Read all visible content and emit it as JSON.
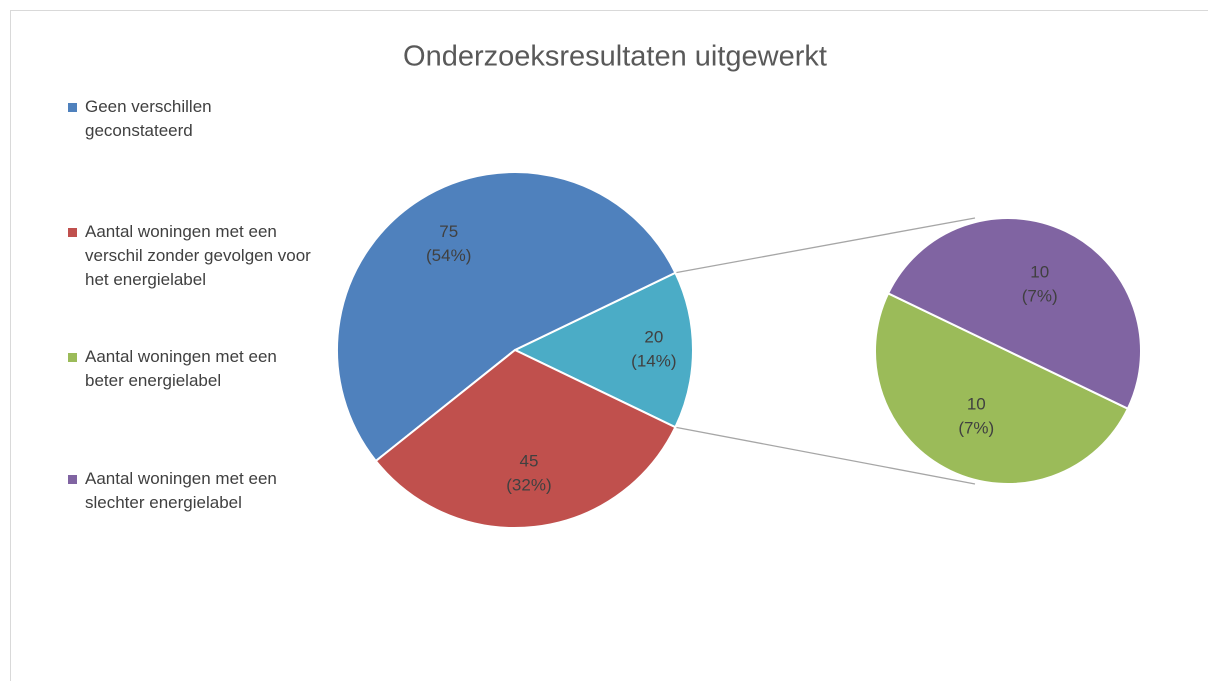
{
  "chart_data": {
    "type": "pie-of-pie",
    "title": "Onderzoeksresultaten uitgewerkt",
    "categories": [
      "Geen verschillen geconstateerd",
      "Aantal woningen met een verschil zonder gevolgen voor het energielabel",
      "Aantal woningen met een beter energielabel",
      "Aantal woningen met een slechter energielabel"
    ],
    "values": [
      75,
      45,
      10,
      10
    ],
    "percentages": [
      54,
      32,
      7,
      7
    ],
    "percentage_labels": [
      "(54%)",
      "(32%)",
      "(7%)",
      "(7%)"
    ],
    "colors": [
      "#4f81bd",
      "#c0504d",
      "#9bbb59",
      "#8064a2"
    ],
    "other": {
      "value": 20,
      "percentage": 14,
      "percentage_label": "(14%)",
      "color": "#4bacc6"
    },
    "legend": "left"
  }
}
